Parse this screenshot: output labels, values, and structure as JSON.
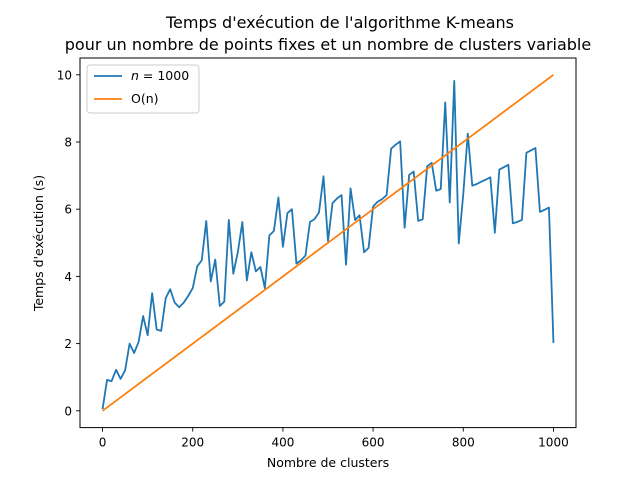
{
  "chart_data": {
    "type": "line",
    "title": "Temps d'exécution de l'algorithme K-means",
    "subtitle": "pour un nombre de points fixes et un nombre de clusters variable",
    "xlabel": "Nombre de clusters",
    "ylabel": "Temps d'exécution (s)",
    "xlim": [
      -50,
      1050
    ],
    "ylim": [
      -0.5,
      10.5
    ],
    "xticks": [
      0,
      200,
      400,
      600,
      800,
      1000
    ],
    "yticks": [
      0,
      2,
      4,
      6,
      8,
      10
    ],
    "grid": false,
    "legend_position": "top-left",
    "series": [
      {
        "name": "n = 1000",
        "legend_prefix": "n",
        "legend_suffix": " = 1000",
        "color": "#1f77b4",
        "points": [
          [
            0,
            0.05
          ],
          [
            10,
            0.92
          ],
          [
            20,
            0.88
          ],
          [
            30,
            1.22
          ],
          [
            40,
            0.95
          ],
          [
            50,
            1.2
          ],
          [
            60,
            2.0
          ],
          [
            70,
            1.72
          ],
          [
            80,
            2.05
          ],
          [
            90,
            2.82
          ],
          [
            100,
            2.25
          ],
          [
            110,
            3.5
          ],
          [
            120,
            2.42
          ],
          [
            130,
            2.38
          ],
          [
            140,
            3.35
          ],
          [
            150,
            3.62
          ],
          [
            160,
            3.22
          ],
          [
            170,
            3.08
          ],
          [
            180,
            3.22
          ],
          [
            190,
            3.42
          ],
          [
            200,
            3.65
          ],
          [
            210,
            4.3
          ],
          [
            220,
            4.48
          ],
          [
            230,
            5.65
          ],
          [
            240,
            3.85
          ],
          [
            250,
            4.5
          ],
          [
            260,
            3.12
          ],
          [
            270,
            3.25
          ],
          [
            280,
            5.68
          ],
          [
            290,
            4.08
          ],
          [
            300,
            4.72
          ],
          [
            310,
            5.62
          ],
          [
            320,
            3.88
          ],
          [
            330,
            4.72
          ],
          [
            340,
            4.15
          ],
          [
            350,
            4.28
          ],
          [
            360,
            3.65
          ],
          [
            370,
            5.22
          ],
          [
            380,
            5.35
          ],
          [
            390,
            6.35
          ],
          [
            400,
            4.88
          ],
          [
            410,
            5.88
          ],
          [
            420,
            6.0
          ],
          [
            430,
            4.38
          ],
          [
            440,
            4.48
          ],
          [
            450,
            4.62
          ],
          [
            460,
            5.62
          ],
          [
            470,
            5.7
          ],
          [
            480,
            5.9
          ],
          [
            490,
            6.98
          ],
          [
            500,
            5.05
          ],
          [
            510,
            6.18
          ],
          [
            520,
            6.32
          ],
          [
            530,
            6.42
          ],
          [
            540,
            4.35
          ],
          [
            550,
            6.62
          ],
          [
            560,
            5.68
          ],
          [
            570,
            5.82
          ],
          [
            580,
            4.72
          ],
          [
            590,
            4.85
          ],
          [
            600,
            6.08
          ],
          [
            610,
            6.22
          ],
          [
            620,
            6.3
          ],
          [
            630,
            6.42
          ],
          [
            640,
            7.8
          ],
          [
            650,
            7.92
          ],
          [
            660,
            8.02
          ],
          [
            670,
            5.45
          ],
          [
            680,
            7.02
          ],
          [
            690,
            7.12
          ],
          [
            700,
            5.65
          ],
          [
            710,
            5.7
          ],
          [
            720,
            7.28
          ],
          [
            730,
            7.38
          ],
          [
            740,
            6.55
          ],
          [
            750,
            6.6
          ],
          [
            760,
            9.18
          ],
          [
            770,
            6.2
          ],
          [
            780,
            9.82
          ],
          [
            790,
            4.98
          ],
          [
            800,
            6.45
          ],
          [
            810,
            8.25
          ],
          [
            820,
            6.7
          ],
          [
            830,
            6.75
          ],
          [
            840,
            6.82
          ],
          [
            850,
            6.88
          ],
          [
            860,
            6.95
          ],
          [
            870,
            5.3
          ],
          [
            880,
            7.18
          ],
          [
            890,
            7.25
          ],
          [
            900,
            7.32
          ],
          [
            910,
            5.58
          ],
          [
            920,
            5.62
          ],
          [
            930,
            5.68
          ],
          [
            940,
            7.68
          ],
          [
            950,
            7.75
          ],
          [
            960,
            7.82
          ],
          [
            970,
            5.92
          ],
          [
            980,
            5.98
          ],
          [
            990,
            6.05
          ],
          [
            1000,
            2.02
          ]
        ]
      },
      {
        "name": "O(n)",
        "color": "#ff7f0e",
        "points": [
          [
            0,
            0
          ],
          [
            1000,
            10
          ]
        ]
      }
    ]
  }
}
